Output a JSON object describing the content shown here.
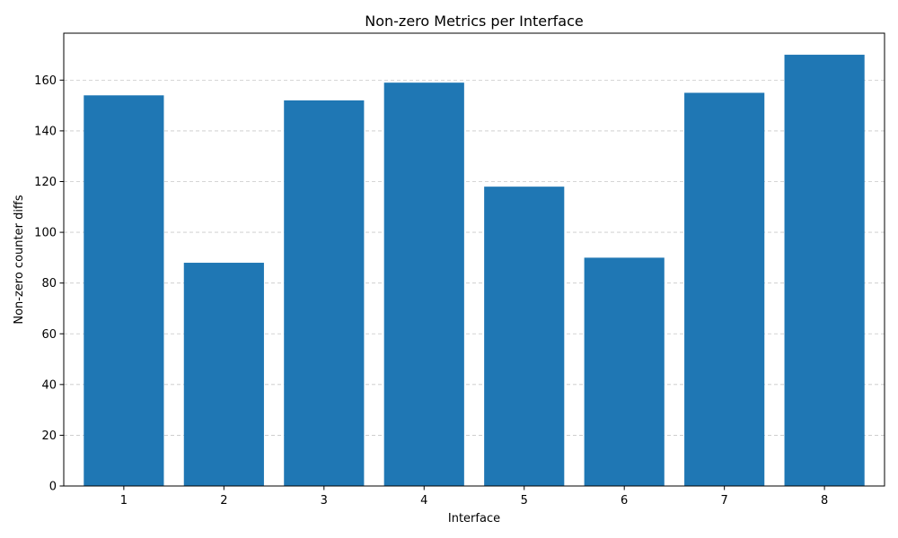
{
  "chart_data": {
    "type": "bar",
    "title": "Non-zero Metrics per Interface",
    "xlabel": "Interface",
    "ylabel": "Non-zero counter diffs",
    "categories": [
      "1",
      "2",
      "3",
      "4",
      "5",
      "6",
      "7",
      "8"
    ],
    "values": [
      154,
      88,
      152,
      159,
      118,
      90,
      155,
      170
    ],
    "ylim": [
      0,
      178.5
    ],
    "yticks": [
      0,
      20,
      40,
      60,
      80,
      100,
      120,
      140,
      160
    ],
    "grid": "y-dashed",
    "colors": {
      "bar": "#1f77b4",
      "grid": "#c8c8c8",
      "axis": "#000000"
    }
  }
}
